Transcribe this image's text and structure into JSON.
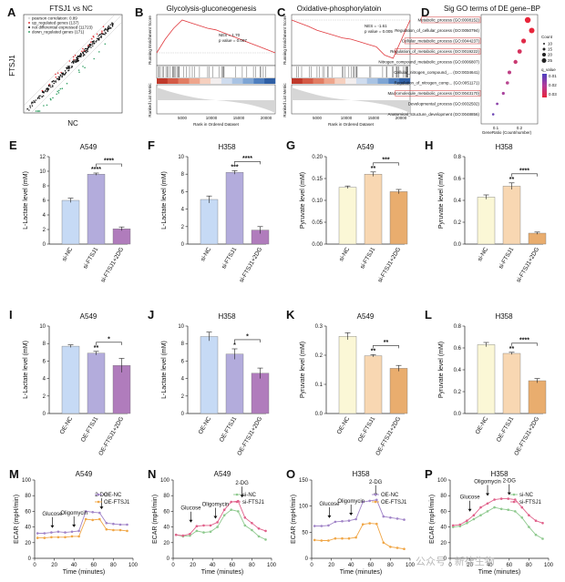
{
  "panel_labels": {
    "A": "A",
    "B": "B",
    "C": "C",
    "D": "D",
    "E": "E",
    "F": "F",
    "G": "G",
    "H": "H",
    "I": "I",
    "J": "J",
    "K": "K",
    "L": "L",
    "M": "M",
    "N": "N",
    "O": "O",
    "P": "P"
  },
  "watermark": "公众号 · 新律生物",
  "scatter": {
    "title": "FTSJ1 vs NC",
    "xlabel": "NC",
    "ylabel": "FTSJ1",
    "legend": [
      "pearson correlation: 0.89",
      "up_regulated genes (137)",
      "not differential expressed (11723)",
      "down_regulated genes (171)"
    ],
    "colors": {
      "up": "#e0393e",
      "ns": "#111111",
      "down": "#3aa36a"
    }
  },
  "gsea": [
    {
      "title": "Glycolysis-gluconeogenesis",
      "nes": "NES = 1.70",
      "p": "p value = 0.007",
      "ylabel": "Running Enrichment Score",
      "ylabel2": "Ranked List Metric",
      "xlabel": "Rank in Ordered Dataset",
      "ticks": [
        "5000",
        "10000",
        "15000",
        "20000"
      ],
      "curve": [
        0,
        0.25,
        0.45,
        0.6,
        0.55,
        0.5,
        0.45,
        0.42,
        0.36,
        0.3,
        0.24,
        0.18,
        0.12,
        0.06,
        0
      ]
    },
    {
      "title": "Oxidative-phosphorylatoin",
      "nes": "NES = -1.61",
      "p": "p value = 0.005",
      "ylabel": "Running Enrichment Score",
      "ylabel2": "Ranked List Metric",
      "xlabel": "Rank in Ordered Dataset",
      "ticks": [
        "5000",
        "10000",
        "15000",
        "20000"
      ],
      "curve": [
        0,
        -0.05,
        -0.1,
        -0.16,
        -0.2,
        -0.24,
        -0.28,
        -0.3,
        -0.34,
        -0.38,
        -0.42,
        -0.55,
        -0.6,
        -0.3,
        0
      ]
    }
  ],
  "go": {
    "title": "Sig GO terms of DE gene−BP",
    "xlabel": "GeneRatio (Count/number)",
    "xticks": [
      "0.1",
      "0.2"
    ],
    "count_title": "Count",
    "count_levels": [
      "10",
      "15",
      "20",
      "25"
    ],
    "qvalue_title": "q_value",
    "qvalue_ticks": [
      "0.01",
      "0.02",
      "0.03"
    ],
    "terms": [
      {
        "label": "Metabolic_process (GO:0008152)",
        "x": 0.22,
        "boxed": true
      },
      {
        "label": "Regulation_of_cellular_process (GO:0050794)",
        "x": 0.24,
        "boxed": false
      },
      {
        "label": "Cellular_metabolic_process (GO:0044237)",
        "x": 0.2,
        "boxed": true
      },
      {
        "label": "Regulation_of_metabolic_process (GO:0019222)",
        "x": 0.18,
        "boxed": true
      },
      {
        "label": "Nitrogen_compound_metabolic_process (GO:0006807)",
        "x": 0.16,
        "boxed": false
      },
      {
        "label": "Cellular_nitrogen_compound_... (GO:0034641)",
        "x": 0.13,
        "boxed": false
      },
      {
        "label": "Regulation_of_nitrogen_comp... (GO:0051171)",
        "x": 0.12,
        "boxed": false
      },
      {
        "label": "Macromolecule_metabolic_process (GO:0043170)",
        "x": 0.1,
        "boxed": true
      },
      {
        "label": "Developmental_process (GO:0032502)",
        "x": 0.07,
        "boxed": false
      },
      {
        "label": "Anatomical_structure_development (GO:0048856)",
        "x": 0.05,
        "boxed": false
      }
    ]
  },
  "chart_data": [
    {
      "id": "E",
      "type": "bar",
      "title": "A549",
      "ylabel": "L-Lactate level (mM)",
      "ylim": [
        0,
        12
      ],
      "yticks": [
        0,
        2,
        4,
        6,
        8,
        10,
        12
      ],
      "categories": [
        "si-NC",
        "si-FTSJ1",
        "si-FTSJ1+2DG"
      ],
      "values": [
        6.0,
        9.6,
        2.1
      ],
      "errors": [
        0.3,
        0.15,
        0.25
      ],
      "stars": [
        "",
        "****",
        ""
      ],
      "bracket": "****",
      "colors": [
        "#c6daf5",
        "#b3acdc",
        "#b07cbc"
      ]
    },
    {
      "id": "F",
      "type": "bar",
      "title": "H358",
      "ylabel": "L-Lactate level (mM)",
      "ylim": [
        0,
        10
      ],
      "yticks": [
        0,
        2,
        4,
        6,
        8,
        10
      ],
      "categories": [
        "si-NC",
        "si-FTSJ1",
        "si-FTSJ1+2DG"
      ],
      "values": [
        5.1,
        8.2,
        1.6
      ],
      "errors": [
        0.4,
        0.2,
        0.4
      ],
      "stars": [
        "",
        "***",
        ""
      ],
      "bracket": "****",
      "colors": [
        "#c6daf5",
        "#b3acdc",
        "#b07cbc"
      ]
    },
    {
      "id": "G",
      "type": "bar",
      "title": "A549",
      "ylabel": "Pyruvate level (mM)",
      "ylim": [
        0,
        0.2
      ],
      "yticks": [
        0,
        0.05,
        0.1,
        0.15,
        0.2
      ],
      "categories": [
        "si-NC",
        "si-FTSJ1",
        "si-FTSJ1+2DG"
      ],
      "values": [
        0.13,
        0.16,
        0.12
      ],
      "errors": [
        0.003,
        0.005,
        0.005
      ],
      "stars": [
        "",
        "**",
        ""
      ],
      "bracket": "***",
      "colors": [
        "#fbf7d6",
        "#f8d7b2",
        "#e9ad6e"
      ]
    },
    {
      "id": "H",
      "type": "bar",
      "title": "H358",
      "ylabel": "Pyruvate level (mM)",
      "ylim": [
        0,
        0.8
      ],
      "yticks": [
        0,
        0.2,
        0.4,
        0.6,
        0.8
      ],
      "categories": [
        "si-NC",
        "si-FTSJ1",
        "si-FTSJ1+2DG"
      ],
      "values": [
        0.43,
        0.53,
        0.1
      ],
      "errors": [
        0.02,
        0.03,
        0.01
      ],
      "stars": [
        "",
        "**",
        ""
      ],
      "bracket": "****",
      "colors": [
        "#fbf7d6",
        "#f8d7b2",
        "#e9ad6e"
      ]
    },
    {
      "id": "I",
      "type": "bar",
      "title": "A549",
      "ylabel": "L-Lactate level (mM)",
      "ylim": [
        0,
        10
      ],
      "yticks": [
        0,
        2,
        4,
        6,
        8,
        10
      ],
      "categories": [
        "OE-NC",
        "OE-FTSJ1",
        "OE-FTSJ1+2DG"
      ],
      "values": [
        7.7,
        6.9,
        5.5
      ],
      "errors": [
        0.15,
        0.2,
        0.8
      ],
      "stars": [
        "",
        "**",
        ""
      ],
      "bracket": "*",
      "colors": [
        "#c6daf5",
        "#b3acdc",
        "#b07cbc"
      ]
    },
    {
      "id": "J",
      "type": "bar",
      "title": "H358",
      "ylabel": "L-Lactate level (mM)",
      "ylim": [
        0,
        10
      ],
      "yticks": [
        0,
        2,
        4,
        6,
        8,
        10
      ],
      "categories": [
        "OE-NC",
        "OE-FTSJ1",
        "OE-FTSJ1+2DG"
      ],
      "values": [
        8.8,
        6.8,
        4.6
      ],
      "errors": [
        0.5,
        0.6,
        0.6
      ],
      "stars": [
        "",
        "*",
        ""
      ],
      "bracket": "*",
      "colors": [
        "#c6daf5",
        "#b3acdc",
        "#b07cbc"
      ]
    },
    {
      "id": "K",
      "type": "bar",
      "title": "A549",
      "ylabel": "Pyruvate level (mM)",
      "ylim": [
        0,
        0.3
      ],
      "yticks": [
        0,
        0.1,
        0.2,
        0.3
      ],
      "categories": [
        "OE-NC",
        "OE-FTSJ1",
        "OE-FTSJ1+2DG"
      ],
      "values": [
        0.265,
        0.198,
        0.155
      ],
      "errors": [
        0.012,
        0.004,
        0.01
      ],
      "stars": [
        "",
        "**",
        ""
      ],
      "bracket": "**",
      "colors": [
        "#fbf7d6",
        "#f8d7b2",
        "#e9ad6e"
      ]
    },
    {
      "id": "L",
      "type": "bar",
      "title": "H358",
      "ylabel": "Pyruvate level (mM)",
      "ylim": [
        0,
        0.8
      ],
      "yticks": [
        0,
        0.2,
        0.4,
        0.6,
        0.8
      ],
      "categories": [
        "OE-NC",
        "OE-FTSJ1",
        "OE-FTSJ1+2DG"
      ],
      "values": [
        0.63,
        0.55,
        0.3
      ],
      "errors": [
        0.02,
        0.01,
        0.02
      ],
      "stars": [
        "",
        "**",
        ""
      ],
      "bracket": "****",
      "colors": [
        "#fbf7d6",
        "#f8d7b2",
        "#e9ad6e"
      ]
    },
    {
      "id": "M",
      "type": "line",
      "title": "A549",
      "ylabel": "ECAR (mpH/min)",
      "xlabel": "Time (minutes)",
      "ylim": [
        0,
        100
      ],
      "yticks": [
        0,
        20,
        40,
        60,
        80,
        100
      ],
      "xlim": [
        0,
        100
      ],
      "xticks": [
        0,
        20,
        40,
        60,
        80,
        100
      ],
      "annotations": [
        {
          "text": "Glucose",
          "x": 18
        },
        {
          "text": "Oligomycin",
          "x": 40
        },
        {
          "text": "2-DG",
          "x": 68
        }
      ],
      "x": [
        3,
        10,
        17,
        24,
        31,
        38,
        45,
        52,
        59,
        66,
        73,
        80,
        87,
        94
      ],
      "series": [
        {
          "name": "OE-NC",
          "color": "#a184c8",
          "values": [
            32,
            32,
            33,
            34,
            33,
            34,
            35,
            60,
            59,
            58,
            45,
            44,
            43,
            43
          ]
        },
        {
          "name": "OE-FTSJ1",
          "color": "#f0a646",
          "values": [
            26,
            26,
            27,
            27,
            27,
            28,
            28,
            50,
            49,
            50,
            37,
            36,
            36,
            35
          ]
        }
      ]
    },
    {
      "id": "N",
      "type": "line",
      "title": "A549",
      "ylabel": "ECAR (mpH/min)",
      "xlabel": "Time (minutes)",
      "ylim": [
        0,
        100
      ],
      "yticks": [
        0,
        20,
        40,
        60,
        80,
        100
      ],
      "xlim": [
        0,
        100
      ],
      "xticks": [
        0,
        20,
        40,
        60,
        80,
        100
      ],
      "annotations": [
        {
          "text": "Glucose",
          "x": 18
        },
        {
          "text": "Oligomycin",
          "x": 43
        },
        {
          "text": "2-DG",
          "x": 70
        }
      ],
      "x": [
        3,
        10,
        17,
        24,
        31,
        38,
        45,
        52,
        59,
        66,
        73,
        80,
        87,
        94
      ],
      "series": [
        {
          "name": "si-NC",
          "color": "#8ec98e",
          "values": [
            30,
            28,
            29,
            35,
            33,
            34,
            40,
            55,
            62,
            60,
            42,
            36,
            28,
            24
          ]
        },
        {
          "name": "si-FTSJ1",
          "color": "#e0608a",
          "values": [
            30,
            29,
            31,
            41,
            42,
            42,
            46,
            62,
            72,
            73,
            52,
            45,
            38,
            35
          ]
        }
      ]
    },
    {
      "id": "O",
      "type": "line",
      "title": "H358",
      "ylabel": "ECAR (mpH/min)",
      "xlabel": "Time (minutes)",
      "ylim": [
        0,
        150
      ],
      "yticks": [
        0,
        50,
        100,
        150
      ],
      "xlim": [
        0,
        100
      ],
      "xticks": [
        0,
        20,
        40,
        60,
        80,
        100
      ],
      "annotations": [
        {
          "text": "Glucose",
          "x": 18
        },
        {
          "text": "Oligomycin",
          "x": 40
        },
        {
          "text": "2-DG",
          "x": 65
        }
      ],
      "x": [
        3,
        10,
        17,
        24,
        31,
        38,
        45,
        52,
        59,
        66,
        73,
        80,
        87,
        94
      ],
      "series": [
        {
          "name": "OE-NC",
          "color": "#a184c8",
          "values": [
            62,
            62,
            63,
            70,
            71,
            72,
            75,
            108,
            110,
            112,
            80,
            78,
            76,
            74
          ]
        },
        {
          "name": "OE-FTSJ1",
          "color": "#f0a646",
          "values": [
            35,
            34,
            34,
            38,
            38,
            38,
            40,
            65,
            67,
            66,
            30,
            22,
            20,
            18
          ]
        }
      ]
    },
    {
      "id": "P",
      "type": "line",
      "title": "H358",
      "ylabel": "ECAR (mpH/min)",
      "xlabel": "Time (minutes)",
      "ylim": [
        0,
        100
      ],
      "yticks": [
        0,
        20,
        40,
        60,
        80,
        100
      ],
      "xlim": [
        0,
        100
      ],
      "xticks": [
        0,
        20,
        40,
        60,
        80,
        100
      ],
      "annotations": [
        {
          "text": "Glucose",
          "x": 20
        },
        {
          "text": "Oligomycin",
          "x": 38
        },
        {
          "text": "2-DG",
          "x": 60
        }
      ],
      "x": [
        3,
        10,
        17,
        24,
        31,
        38,
        45,
        52,
        59,
        66,
        73,
        80,
        87,
        94
      ],
      "series": [
        {
          "name": "si-NC",
          "color": "#8ec98e",
          "values": [
            40,
            41,
            45,
            50,
            55,
            60,
            65,
            63,
            62,
            60,
            52,
            40,
            30,
            25
          ]
        },
        {
          "name": "si-FTSJ1",
          "color": "#e0608a",
          "values": [
            42,
            43,
            48,
            55,
            65,
            70,
            75,
            76,
            76,
            75,
            65,
            55,
            48,
            45
          ]
        }
      ]
    }
  ]
}
